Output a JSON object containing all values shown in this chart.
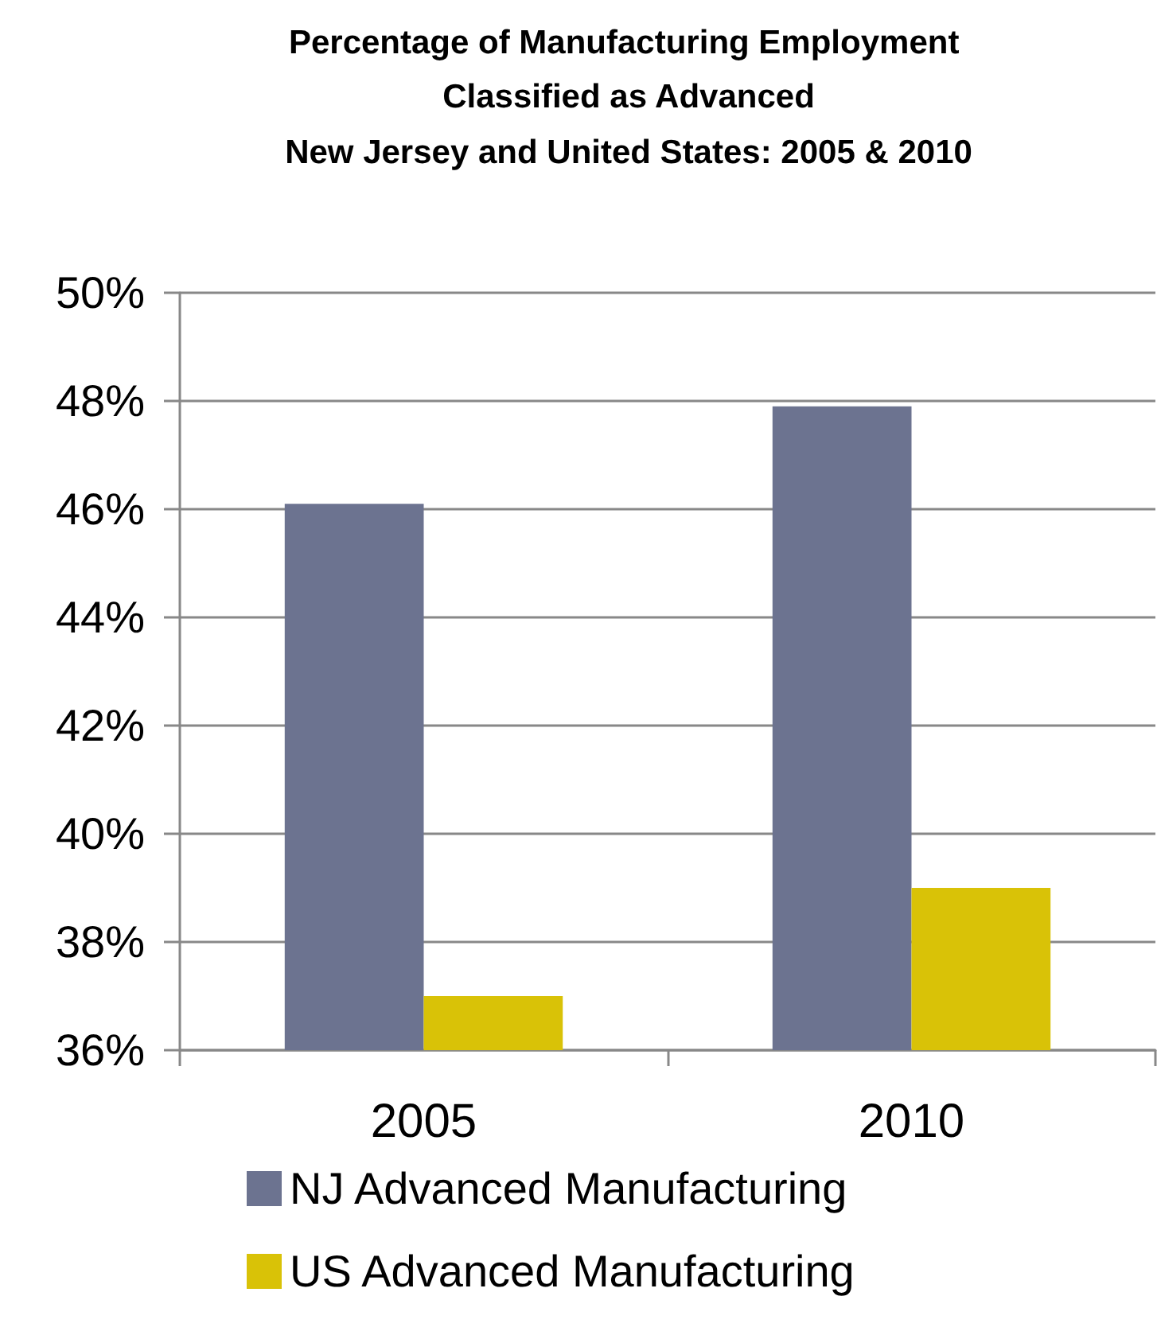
{
  "chart_data": {
    "type": "bar",
    "title": "Percentage of Manufacturing Employment Classified as Advanced",
    "subtitle": "New Jersey and United States: 2005 & 2010",
    "categories": [
      "2005",
      "2010"
    ],
    "series": [
      {
        "name": "NJ Advanced Manufacturing",
        "color": "#6c7390",
        "values": [
          46.1,
          47.9
        ]
      },
      {
        "name": "US Advanced Manufacturing",
        "color": "#d9c207",
        "values": [
          37.0,
          39.0
        ]
      }
    ],
    "ylim": [
      36,
      50
    ],
    "yticks": [
      {
        "value": 36,
        "label": "36%"
      },
      {
        "value": 38,
        "label": "38%"
      },
      {
        "value": 40,
        "label": "40%"
      },
      {
        "value": 42,
        "label": "42%"
      },
      {
        "value": 44,
        "label": "44%"
      },
      {
        "value": 46,
        "label": "46%"
      },
      {
        "value": 48,
        "label": "48%"
      },
      {
        "value": 50,
        "label": "50%"
      }
    ],
    "grid": "y",
    "legend": "bottom"
  }
}
